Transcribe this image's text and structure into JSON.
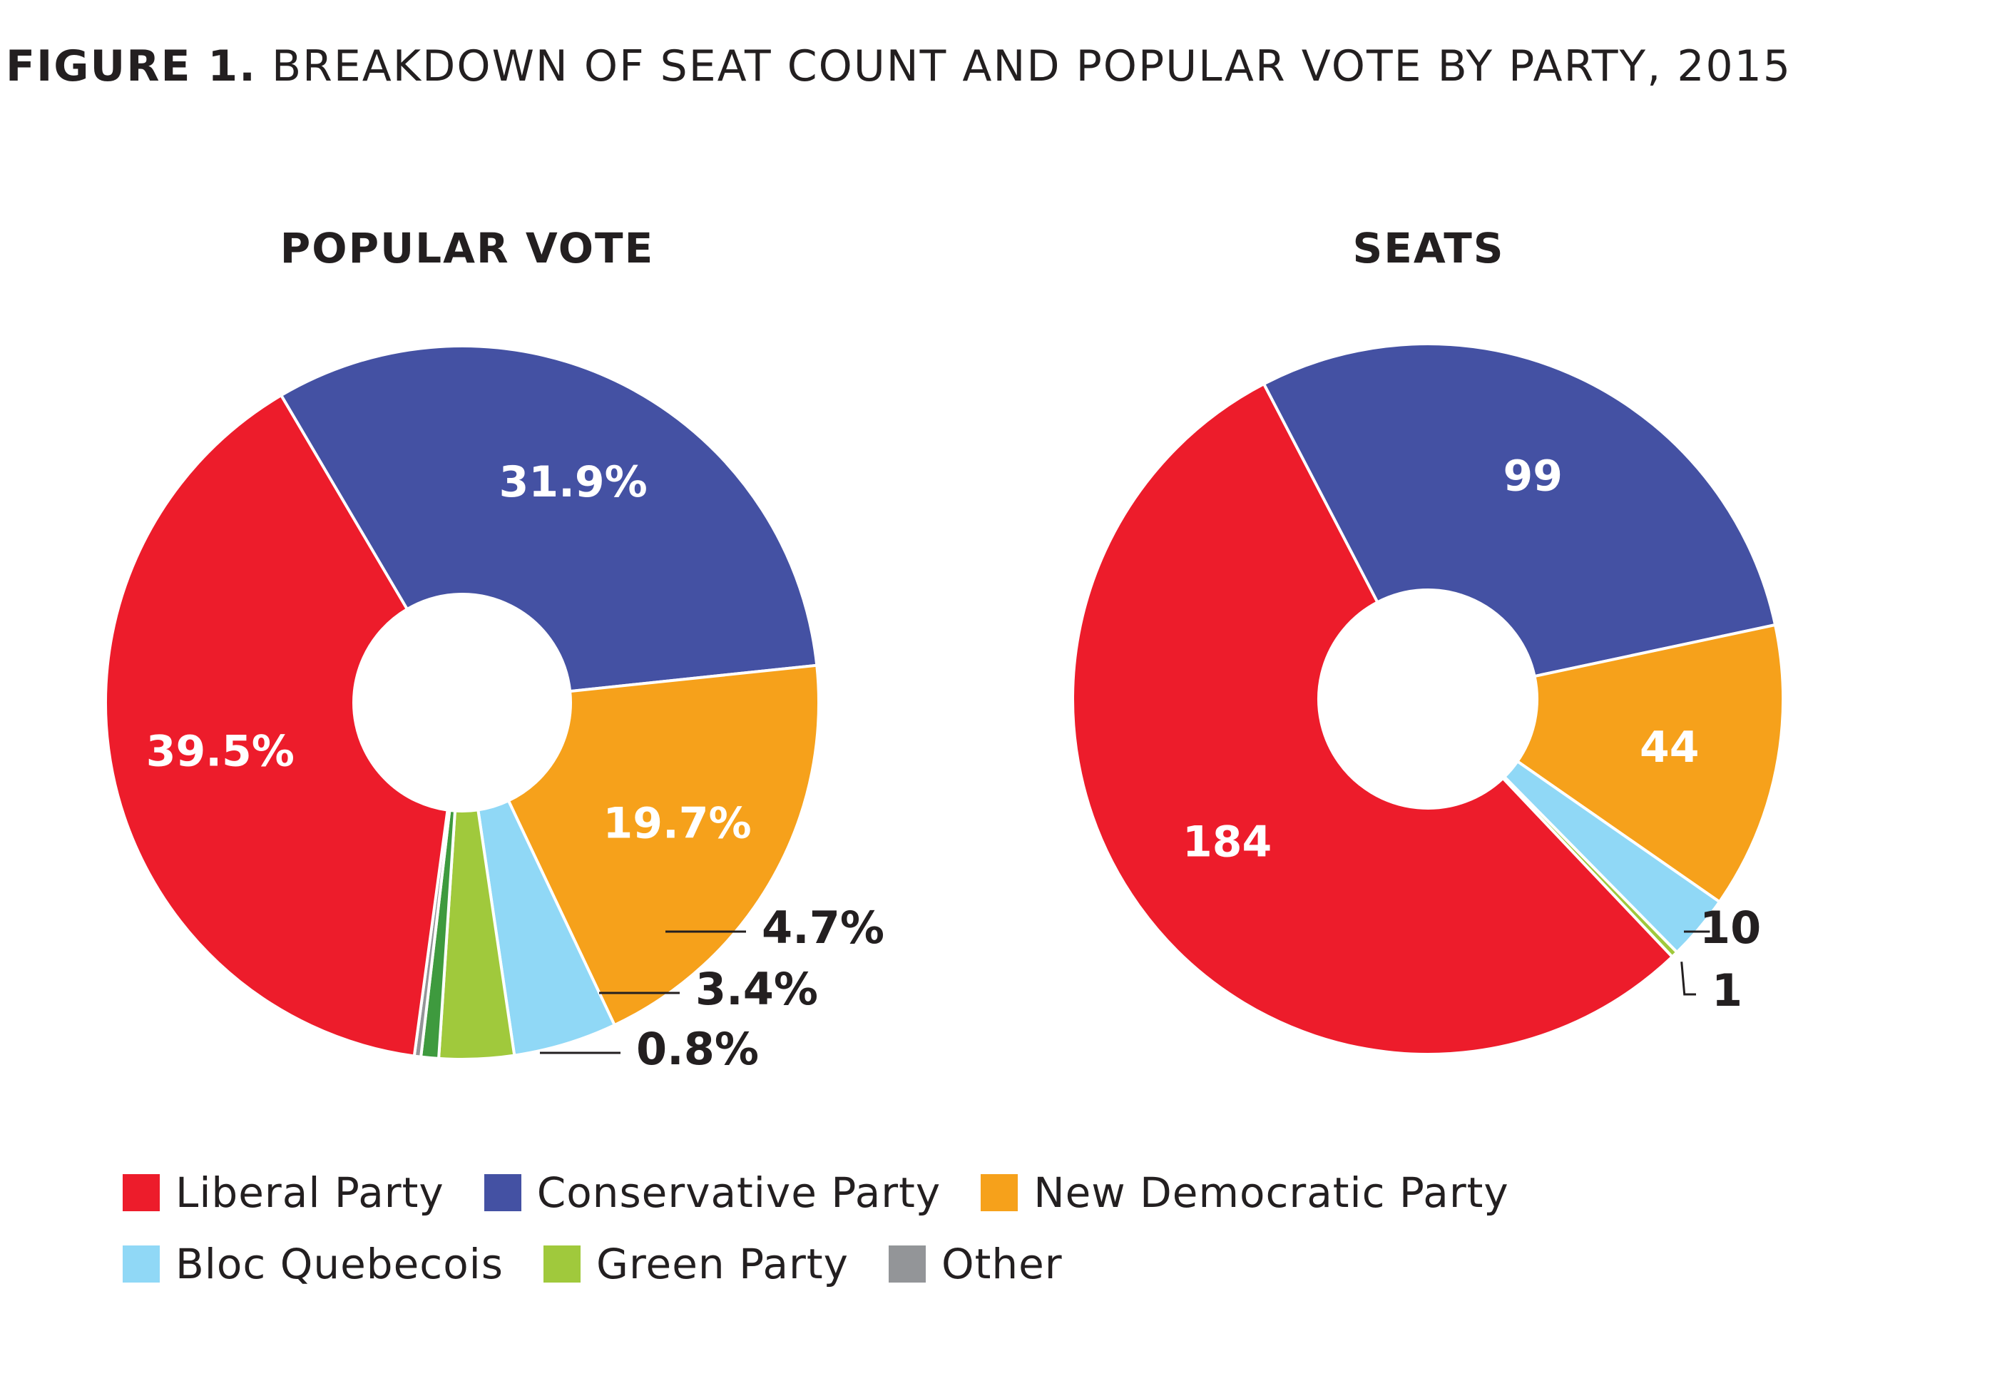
{
  "figure": {
    "title_lead": "FIGURE 1.",
    "title_rest": "BREAKDOWN OF SEAT COUNT AND POPULAR VOTE BY PARTY, 2015"
  },
  "colors": {
    "Liberal Party": "#ed1c2b",
    "Conservative Party": "#4451a3",
    "New Democratic Party": "#f6a11b",
    "Bloc Quebecois": "#90d8f6",
    "Green Party": "#a0c93c",
    "Green Party (dark)": "#3e9a3e",
    "Other": "#939598"
  },
  "legend": {
    "rows": [
      [
        {
          "label": "Liberal Party",
          "color": "#ed1c2b"
        },
        {
          "label": "Conservative Party",
          "color": "#4451a3"
        },
        {
          "label": "New Democratic Party",
          "color": "#f6a11b"
        }
      ],
      [
        {
          "label": "Bloc Quebecois",
          "color": "#90d8f6"
        },
        {
          "label": "Green Party",
          "color": "#a0c93c"
        },
        {
          "label": "Other",
          "color": "#939598"
        }
      ]
    ]
  },
  "chart_data": [
    {
      "type": "pie",
      "title": "POPULAR VOTE",
      "slices": [
        {
          "name": "Conservative Party",
          "value": 31.9,
          "label": "31.9%",
          "color": "#4451a3",
          "label_placement": "inside"
        },
        {
          "name": "New Democratic Party",
          "value": 19.7,
          "label": "19.7%",
          "color": "#f6a11b",
          "label_placement": "inside"
        },
        {
          "name": "Bloc Quebecois",
          "value": 4.7,
          "label": "4.7%",
          "color": "#90d8f6",
          "label_placement": "callout"
        },
        {
          "name": "Green Party",
          "value": 3.4,
          "label": "3.4%",
          "color": "#a0c93c",
          "label_placement": "callout"
        },
        {
          "name": "Green Party",
          "value": 0.8,
          "label": "0.8%",
          "color": "#3e9a3e",
          "label_placement": "callout"
        },
        {
          "name": "Other",
          "value": 0.3,
          "label": "",
          "color": "#939598",
          "label_placement": "none"
        },
        {
          "name": "Liberal Party",
          "value": 39.5,
          "label": "39.5%",
          "color": "#ed1c2b",
          "label_placement": "inside"
        }
      ]
    },
    {
      "type": "pie",
      "title": "SEATS",
      "slices": [
        {
          "name": "Conservative Party",
          "value": 99,
          "label": "99",
          "color": "#4451a3",
          "label_placement": "inside"
        },
        {
          "name": "New Democratic Party",
          "value": 44,
          "label": "44",
          "color": "#f6a11b",
          "label_placement": "inside"
        },
        {
          "name": "Bloc Quebecois",
          "value": 10,
          "label": "10",
          "color": "#90d8f6",
          "label_placement": "callout"
        },
        {
          "name": "Green Party",
          "value": 1,
          "label": "1",
          "color": "#a0c93c",
          "label_placement": "callout"
        },
        {
          "name": "Liberal Party",
          "value": 184,
          "label": "184",
          "color": "#ed1c2b",
          "label_placement": "inside"
        }
      ]
    }
  ]
}
